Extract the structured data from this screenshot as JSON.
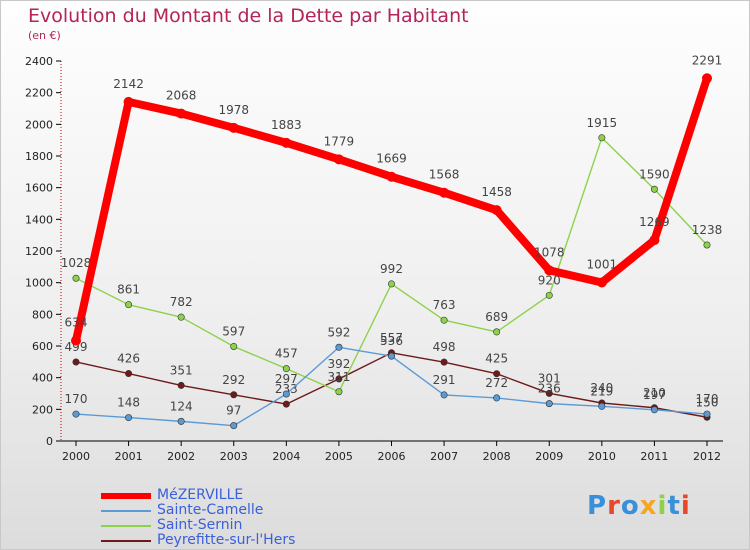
{
  "header": {
    "title": "Evolution du Montant de la Dette par Habitant",
    "unit": "(en €)",
    "title_color": "#b5235b"
  },
  "chart_data": {
    "type": "line",
    "title": "Evolution du Montant de la Dette par Habitant",
    "subtitle": "(en €)",
    "xlabel": "",
    "ylabel": "",
    "x": [
      "2000",
      "2001",
      "2002",
      "2003",
      "2004",
      "2005",
      "2006",
      "2007",
      "2008",
      "2009",
      "2010",
      "2011",
      "2012"
    ],
    "ylim": [
      0,
      2400
    ],
    "yticks": [
      0,
      200,
      400,
      600,
      800,
      1000,
      1200,
      1400,
      1600,
      1800,
      2000,
      2200,
      2400
    ],
    "grid": false,
    "legend_position": "bottom-left",
    "series": [
      {
        "name": "Peyrefitte-sur-l'Hers",
        "color": "#6e1a1a",
        "values": [
          499,
          426,
          351,
          292,
          233,
          392,
          557,
          498,
          425,
          301,
          240,
          210,
          150
        ]
      },
      {
        "name": "Saint-Sernin",
        "color": "#8ed14b",
        "values": [
          1028,
          861,
          782,
          597,
          457,
          311,
          992,
          763,
          689,
          920,
          1915,
          1590,
          1238
        ]
      },
      {
        "name": "Sainte-Camelle",
        "color": "#5b9bd5",
        "values": [
          170,
          148,
          124,
          97,
          297,
          592,
          536,
          291,
          272,
          236,
          219,
          197,
          170
        ]
      },
      {
        "name": "MéZERVILLE",
        "color": "#ff0000",
        "values": [
          634,
          2142,
          2068,
          1978,
          1883,
          1779,
          1669,
          1568,
          1458,
          1078,
          1001,
          1269,
          2291
        ]
      }
    ]
  },
  "legend": {
    "items": [
      {
        "label": "MéZERVILLE",
        "color": "#ff0000",
        "text_color": "#3a5fd9"
      },
      {
        "label": "Sainte-Camelle",
        "color": "#5b9bd5",
        "text_color": "#3a5fd9"
      },
      {
        "label": "Saint-Sernin",
        "color": "#8ed14b",
        "text_color": "#3a5fd9"
      },
      {
        "label": "Peyrefitte-sur-l'Hers",
        "color": "#6e1a1a",
        "text_color": "#3a5fd9"
      }
    ]
  },
  "logo": {
    "text": "Proxiti",
    "colors": [
      "#3a8fd9",
      "#e8472a",
      "#3a8fd9",
      "#f5a623",
      "#8ed14b",
      "#3a8fd9",
      "#e8472a"
    ]
  }
}
